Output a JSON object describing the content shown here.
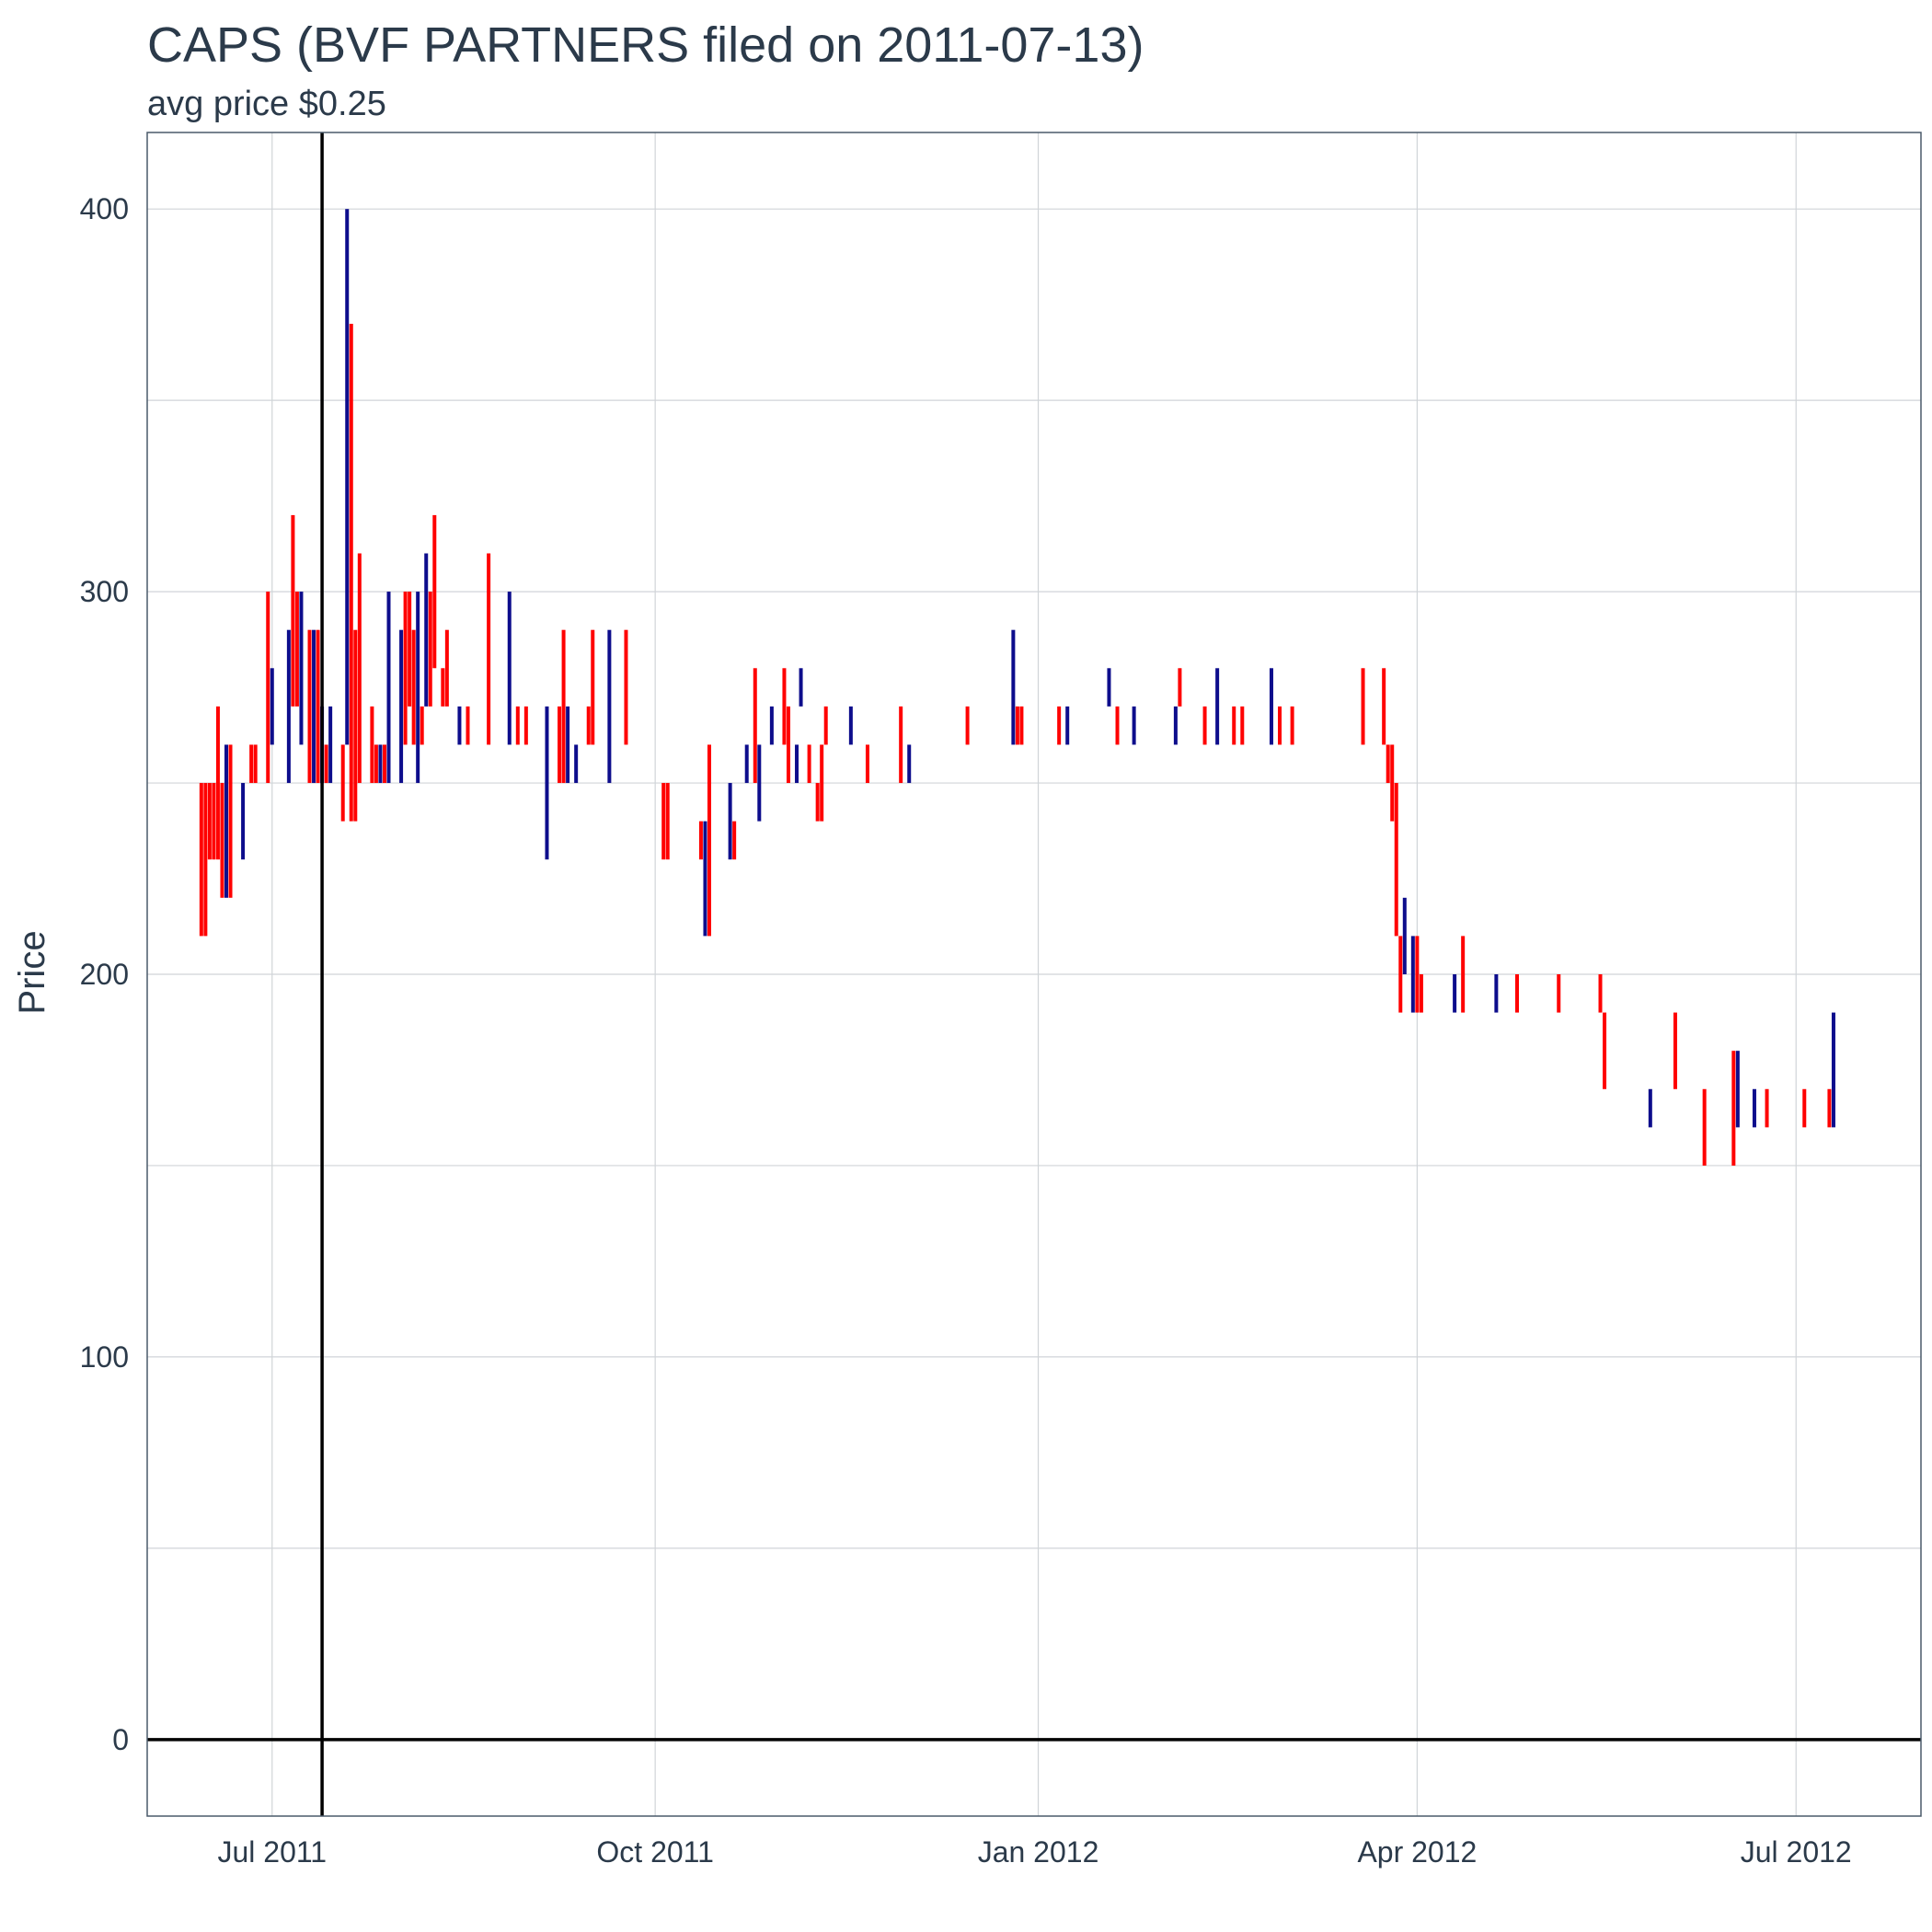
{
  "chart_data": {
    "type": "bar",
    "mark": "price-range-segments",
    "title": "CAPS (BVF PARTNERS filed on 2011-07-13)",
    "subtitle": "avg price $0.25",
    "xlabel": "",
    "ylabel": "Price",
    "ylim": [
      -20,
      420
    ],
    "xlim": [
      "2011-06-01",
      "2012-07-31"
    ],
    "x_ticks": [
      {
        "date": "2011-07-01",
        "label": "Jul 2011"
      },
      {
        "date": "2011-10-01",
        "label": "Oct 2011"
      },
      {
        "date": "2012-01-01",
        "label": "Jan 2012"
      },
      {
        "date": "2012-04-01",
        "label": "Apr 2012"
      },
      {
        "date": "2012-07-01",
        "label": "Jul 2012"
      }
    ],
    "y_ticks": [
      0,
      100,
      200,
      300,
      400
    ],
    "grid": true,
    "reference_lines": {
      "vline_date": "2011-07-13",
      "hline_value": 0
    },
    "colors": {
      "up": "#0d0d8c",
      "down": "#ff0000",
      "reference": "#000000",
      "grid": "#d0d4d8",
      "frame": "#4a5a6a",
      "text": "#2b3a4a"
    },
    "series": [
      {
        "name": "up",
        "values": [
          [
            "2011-06-20",
            220,
            260
          ],
          [
            "2011-06-24",
            230,
            250
          ],
          [
            "2011-07-01",
            260,
            280
          ],
          [
            "2011-07-05",
            250,
            290
          ],
          [
            "2011-07-08",
            260,
            300
          ],
          [
            "2011-07-11",
            250,
            290
          ],
          [
            "2011-07-13",
            250,
            270
          ],
          [
            "2011-07-15",
            250,
            270
          ],
          [
            "2011-07-19",
            260,
            400
          ],
          [
            "2011-07-27",
            250,
            260
          ],
          [
            "2011-07-29",
            250,
            300
          ],
          [
            "2011-08-01",
            250,
            290
          ],
          [
            "2011-08-05",
            250,
            300
          ],
          [
            "2011-08-07",
            270,
            310
          ],
          [
            "2011-08-15",
            260,
            270
          ],
          [
            "2011-08-27",
            260,
            300
          ],
          [
            "2011-09-05",
            230,
            270
          ],
          [
            "2011-09-10",
            250,
            270
          ],
          [
            "2011-09-12",
            250,
            260
          ],
          [
            "2011-09-20",
            250,
            290
          ],
          [
            "2011-10-13",
            210,
            240
          ],
          [
            "2011-10-19",
            230,
            250
          ],
          [
            "2011-10-23",
            250,
            260
          ],
          [
            "2011-10-26",
            240,
            260
          ],
          [
            "2011-10-29",
            260,
            270
          ],
          [
            "2011-11-04",
            250,
            260
          ],
          [
            "2011-11-05",
            270,
            280
          ],
          [
            "2011-11-17",
            260,
            270
          ],
          [
            "2011-12-01",
            250,
            260
          ],
          [
            "2011-12-26",
            260,
            290
          ],
          [
            "2012-01-08",
            260,
            270
          ],
          [
            "2012-01-18",
            270,
            280
          ],
          [
            "2012-01-24",
            260,
            270
          ],
          [
            "2012-02-03",
            260,
            270
          ],
          [
            "2012-02-13",
            260,
            280
          ],
          [
            "2012-02-26",
            260,
            280
          ],
          [
            "2012-03-29",
            200,
            220
          ],
          [
            "2012-03-31",
            190,
            210
          ],
          [
            "2012-04-10",
            190,
            200
          ],
          [
            "2012-04-20",
            190,
            200
          ],
          [
            "2012-05-27",
            160,
            170
          ],
          [
            "2012-06-17",
            160,
            180
          ],
          [
            "2012-06-21",
            160,
            170
          ],
          [
            "2012-07-10",
            160,
            190
          ]
        ]
      },
      {
        "name": "down",
        "values": [
          [
            "2011-06-14",
            210,
            250
          ],
          [
            "2011-06-15",
            210,
            250
          ],
          [
            "2011-06-16",
            230,
            250
          ],
          [
            "2011-06-17",
            230,
            250
          ],
          [
            "2011-06-18",
            230,
            270
          ],
          [
            "2011-06-19",
            220,
            250
          ],
          [
            "2011-06-21",
            220,
            260
          ],
          [
            "2011-06-26",
            250,
            260
          ],
          [
            "2011-06-27",
            250,
            260
          ],
          [
            "2011-06-30",
            250,
            300
          ],
          [
            "2011-07-06",
            270,
            320
          ],
          [
            "2011-07-07",
            270,
            300
          ],
          [
            "2011-07-10",
            250,
            290
          ],
          [
            "2011-07-12",
            250,
            290
          ],
          [
            "2011-07-14",
            250,
            260
          ],
          [
            "2011-07-18",
            240,
            260
          ],
          [
            "2011-07-20",
            240,
            370
          ],
          [
            "2011-07-21",
            240,
            290
          ],
          [
            "2011-07-22",
            250,
            310
          ],
          [
            "2011-07-25",
            250,
            270
          ],
          [
            "2011-07-26",
            250,
            260
          ],
          [
            "2011-07-28",
            250,
            260
          ],
          [
            "2011-08-02",
            260,
            300
          ],
          [
            "2011-08-03",
            270,
            300
          ],
          [
            "2011-08-04",
            260,
            290
          ],
          [
            "2011-08-06",
            260,
            270
          ],
          [
            "2011-08-08",
            270,
            300
          ],
          [
            "2011-08-09",
            280,
            320
          ],
          [
            "2011-08-11",
            270,
            280
          ],
          [
            "2011-08-12",
            270,
            290
          ],
          [
            "2011-08-17",
            260,
            270
          ],
          [
            "2011-08-22",
            260,
            310
          ],
          [
            "2011-08-29",
            260,
            270
          ],
          [
            "2011-08-31",
            260,
            270
          ],
          [
            "2011-09-08",
            250,
            270
          ],
          [
            "2011-09-09",
            250,
            290
          ],
          [
            "2011-09-15",
            260,
            270
          ],
          [
            "2011-09-16",
            260,
            290
          ],
          [
            "2011-09-24",
            260,
            290
          ],
          [
            "2011-10-03",
            230,
            250
          ],
          [
            "2011-10-04",
            230,
            250
          ],
          [
            "2011-10-12",
            230,
            240
          ],
          [
            "2011-10-14",
            210,
            260
          ],
          [
            "2011-10-20",
            230,
            240
          ],
          [
            "2011-10-25",
            250,
            280
          ],
          [
            "2011-11-01",
            260,
            280
          ],
          [
            "2011-11-02",
            250,
            270
          ],
          [
            "2011-11-07",
            250,
            260
          ],
          [
            "2011-11-09",
            240,
            250
          ],
          [
            "2011-11-10",
            240,
            260
          ],
          [
            "2011-11-11",
            260,
            270
          ],
          [
            "2011-11-21",
            250,
            260
          ],
          [
            "2011-11-29",
            250,
            270
          ],
          [
            "2011-12-15",
            260,
            270
          ],
          [
            "2011-12-27",
            260,
            270
          ],
          [
            "2011-12-28",
            260,
            270
          ],
          [
            "2012-01-06",
            260,
            270
          ],
          [
            "2012-01-20",
            260,
            270
          ],
          [
            "2012-02-04",
            270,
            280
          ],
          [
            "2012-02-10",
            260,
            270
          ],
          [
            "2012-02-17",
            260,
            270
          ],
          [
            "2012-02-19",
            260,
            270
          ],
          [
            "2012-02-28",
            260,
            270
          ],
          [
            "2012-03-02",
            260,
            270
          ],
          [
            "2012-03-19",
            260,
            280
          ],
          [
            "2012-03-24",
            260,
            280
          ],
          [
            "2012-03-25",
            250,
            260
          ],
          [
            "2012-03-26",
            240,
            260
          ],
          [
            "2012-03-27",
            210,
            250
          ],
          [
            "2012-03-28",
            190,
            210
          ],
          [
            "2012-04-01",
            190,
            210
          ],
          [
            "2012-04-02",
            190,
            200
          ],
          [
            "2012-04-12",
            190,
            210
          ],
          [
            "2012-04-25",
            190,
            200
          ],
          [
            "2012-05-05",
            190,
            200
          ],
          [
            "2012-05-15",
            190,
            200
          ],
          [
            "2012-05-16",
            170,
            190
          ],
          [
            "2012-06-02",
            170,
            190
          ],
          [
            "2012-06-09",
            150,
            170
          ],
          [
            "2012-06-16",
            150,
            180
          ],
          [
            "2012-06-24",
            160,
            170
          ],
          [
            "2012-07-03",
            160,
            170
          ],
          [
            "2012-07-09",
            160,
            170
          ]
        ]
      }
    ]
  }
}
